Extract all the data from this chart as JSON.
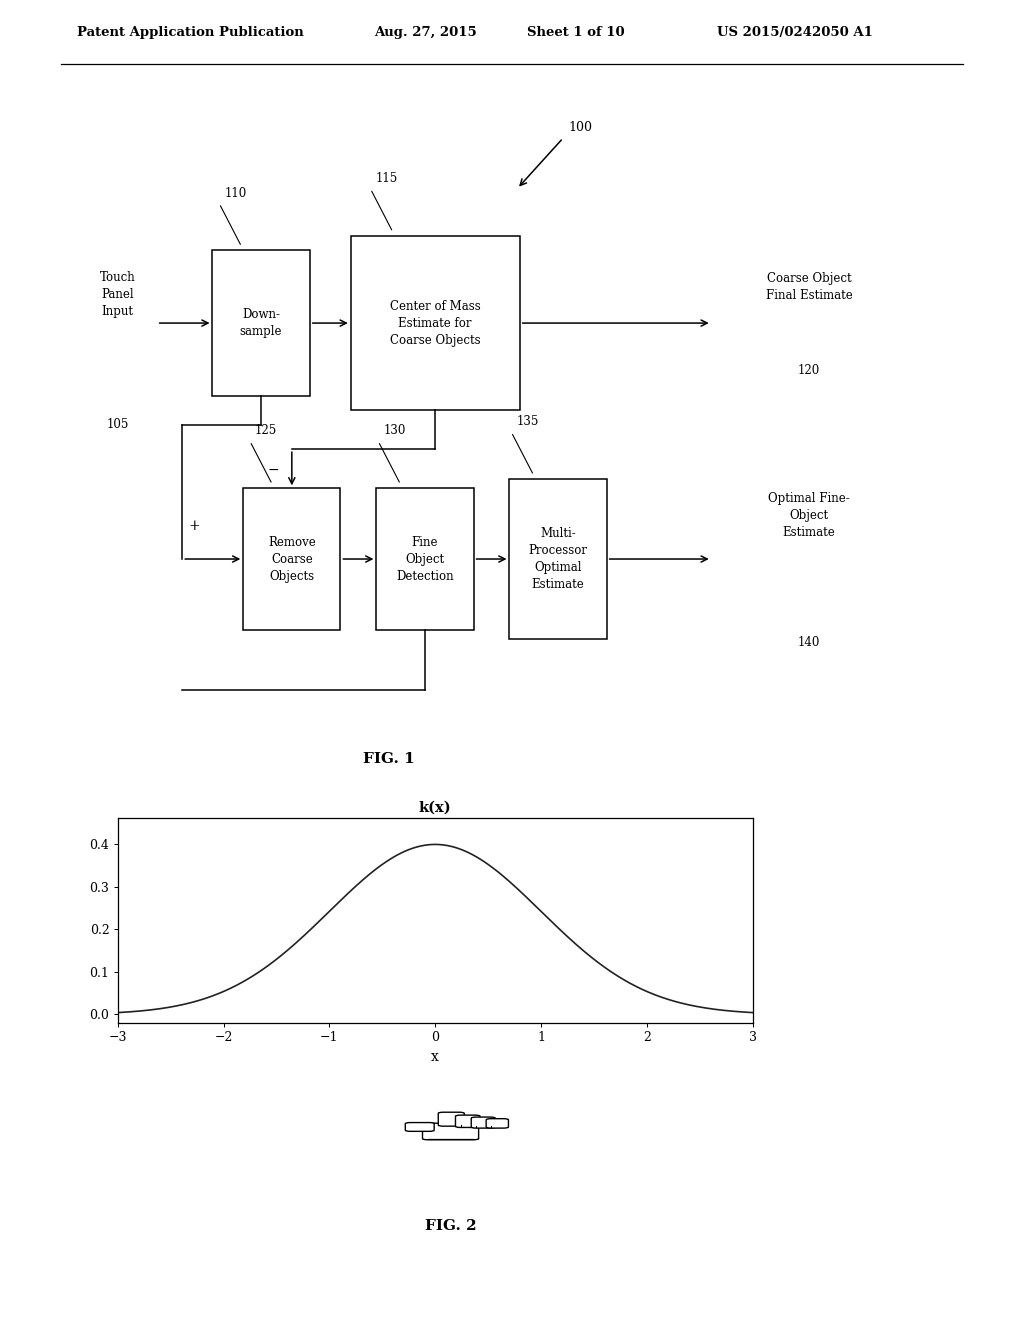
{
  "bg_color": "#ffffff",
  "header_text": "Patent Application Publication",
  "header_date": "Aug. 27, 2015",
  "header_sheet": "Sheet 1 of 10",
  "header_patent": "US 2015/0242050 A1",
  "fig1_label": "FIG. 1",
  "fig2_label": "FIG. 2",
  "plot_title": "k(x)",
  "plot_xlabel": "x",
  "plot_xlim": [
    -3,
    3
  ],
  "plot_ylim": [
    -0.02,
    0.46
  ],
  "plot_yticks": [
    0,
    0.1,
    0.2,
    0.3,
    0.4
  ],
  "plot_xticks": [
    -3,
    -2,
    -1,
    0,
    1,
    2,
    3
  ],
  "text_color": "#000000"
}
